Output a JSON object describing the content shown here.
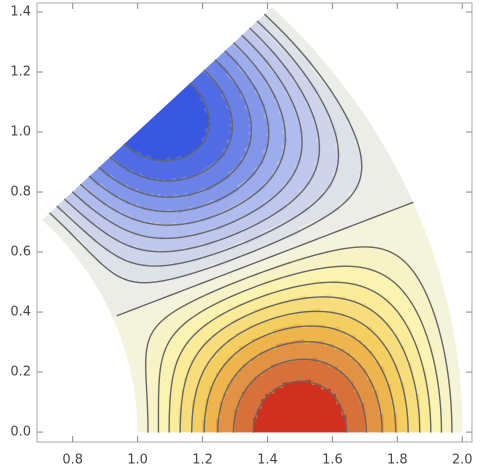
{
  "chart_data": {
    "type": "contour",
    "xlim": [
      0.69,
      2.03
    ],
    "ylim": [
      -0.033,
      1.43
    ],
    "xticks": [
      0.8,
      {
        "value": 1.0,
        "label": "1.0"
      },
      1.2,
      1.4,
      1.6,
      1.8,
      {
        "value": 2.0,
        "label": "2.0"
      }
    ],
    "yticks": [
      {
        "value": 0.0,
        "label": "0.0"
      },
      0.2,
      0.4,
      0.6,
      0.8,
      {
        "value": 1.0,
        "label": "1.0"
      },
      1.2,
      1.4
    ],
    "levels": [
      -0.9,
      -0.8,
      -0.7,
      -0.6,
      -0.5,
      -0.4,
      -0.3,
      -0.2,
      -0.1,
      0,
      0.1,
      0.2,
      0.3,
      0.4,
      0.5,
      0.6,
      0.7,
      0.8,
      0.9
    ],
    "colormap": [
      [
        -1,
        "#2b4de0"
      ],
      [
        -0.5,
        "#a9b6ee"
      ],
      [
        0,
        "#f3f3e6"
      ],
      [
        0.3,
        "#fbf3a6"
      ],
      [
        0.6,
        "#f2c650"
      ],
      [
        0.85,
        "#d8703a"
      ],
      [
        1,
        "#cc1010"
      ]
    ],
    "line_color": "#666666"
  }
}
